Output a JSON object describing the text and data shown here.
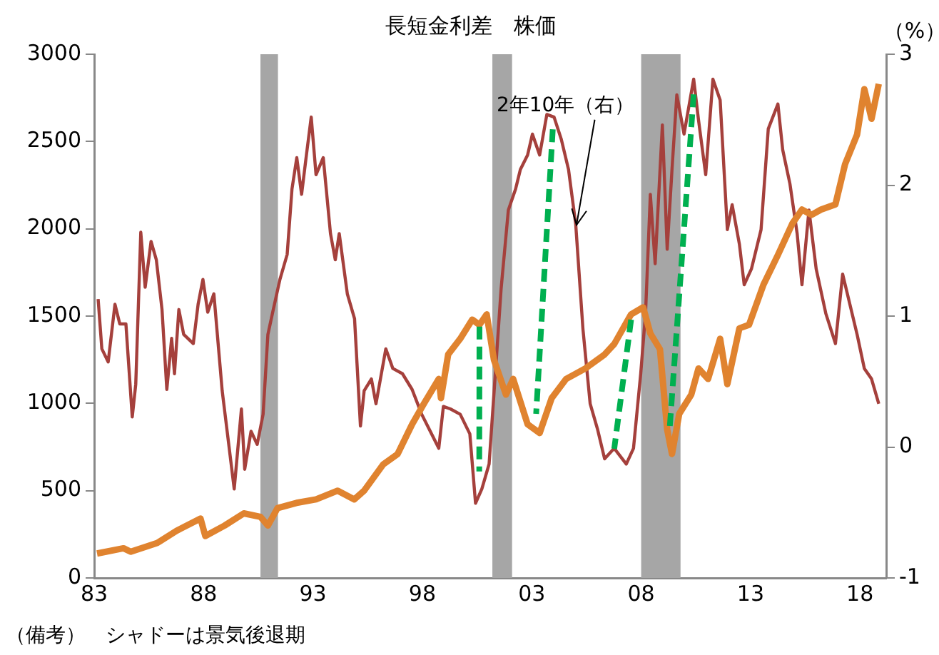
{
  "chart_data": {
    "type": "line",
    "title": "長短金利差　株価",
    "y2label": "（%）",
    "annotations": [
      "（備考）　シャドーは景気後退期"
    ],
    "xlim": [
      1983,
      2019.2
    ],
    "xticks": [
      {
        "value": 1983,
        "label": "83"
      },
      {
        "value": 1988,
        "label": "88"
      },
      {
        "value": 1993,
        "label": "93"
      },
      {
        "value": 1998,
        "label": "98"
      },
      {
        "value": 2003,
        "label": "03"
      },
      {
        "value": 2008,
        "label": "08"
      },
      {
        "value": 2013,
        "label": "13"
      },
      {
        "value": 2018,
        "label": "18"
      }
    ],
    "ylim": [
      0,
      3000
    ],
    "yticks": [
      0,
      500,
      1000,
      1500,
      2000,
      2500,
      3000
    ],
    "y2lim": [
      -1,
      3
    ],
    "y2ticks": [
      -1,
      0,
      1,
      2,
      3
    ],
    "grid": false,
    "legend": false,
    "marker": "none",
    "bands": [
      {
        "axis": "x",
        "from": 1990.6,
        "to": 1991.4,
        "color": "#a6a6a6"
      },
      {
        "axis": "x",
        "from": 2001.2,
        "to": 2002.1,
        "color": "#a6a6a6"
      },
      {
        "axis": "x",
        "from": 2008.0,
        "to": 2009.8,
        "color": "#a6a6a6"
      }
    ],
    "series": [
      {
        "color": "#e0832f",
        "line_style": "solid",
        "x": [
          1983.13,
          1984.34,
          1984.67,
          1985.88,
          1986.76,
          1987.86,
          1988.08,
          1988.96,
          1989.84,
          1990.6,
          1990.94,
          1991.38,
          1992.25,
          1993.14,
          1994.13,
          1994.89,
          1995.34,
          1996.21,
          1996.87,
          1997.53,
          1998.08,
          1998.75,
          1998.85,
          1999.18,
          1999.73,
          2000.28,
          2000.61,
          2000.94,
          2001.27,
          2001.82,
          2002.15,
          2002.81,
          2003.36,
          2003.91,
          2004.57,
          2005.45,
          2006.33,
          2006.77,
          2007.54,
          2008.09,
          2008.42,
          2008.86,
          2009.19,
          2009.41,
          2009.74,
          2010.29,
          2010.62,
          2011.06,
          2011.61,
          2011.94,
          2012.49,
          2012.93,
          2013.59,
          2014.25,
          2014.91,
          2015.35,
          2015.79,
          2016.22,
          2016.88,
          2017.32,
          2017.87,
          2018.2,
          2018.53,
          2018.86
        ],
        "values": [
          140,
          170,
          150,
          200,
          270,
          340,
          240,
          300,
          370,
          350,
          300,
          400,
          430,
          450,
          500,
          450,
          500,
          650,
          710,
          880,
          1000,
          1140,
          1030,
          1280,
          1370,
          1480,
          1450,
          1510,
          1250,
          1050,
          1140,
          880,
          830,
          1030,
          1140,
          1200,
          1280,
          1340,
          1510,
          1550,
          1400,
          1310,
          850,
          710,
          940,
          1050,
          1200,
          1140,
          1370,
          1110,
          1430,
          1450,
          1680,
          1850,
          2030,
          2110,
          2080,
          2110,
          2140,
          2370,
          2540,
          2800,
          2630,
          2830
        ]
      },
      {
        "name": "2年10年（右）",
        "color": "#a5403c",
        "axis": "y2",
        "line_style": "solid",
        "x": [
          1983.18,
          1983.35,
          1983.64,
          1983.95,
          1984.17,
          1984.45,
          1984.74,
          1984.9,
          1985.13,
          1985.33,
          1985.6,
          1985.84,
          1986.1,
          1986.32,
          1986.54,
          1986.67,
          1986.87,
          1987.09,
          1987.53,
          1987.75,
          1987.97,
          1988.19,
          1988.47,
          1988.85,
          1989.4,
          1989.73,
          1989.88,
          1990.17,
          1990.45,
          1990.72,
          1990.94,
          1991.16,
          1991.49,
          1991.82,
          1992.04,
          1992.26,
          1992.48,
          1992.7,
          1992.92,
          1993.14,
          1993.47,
          1993.8,
          1994.02,
          1994.2,
          1994.57,
          1994.9,
          1995.17,
          1995.34,
          1995.67,
          1995.88,
          1996.33,
          1996.65,
          1997.09,
          1997.53,
          1997.97,
          1998.3,
          1998.75,
          1998.96,
          1999.29,
          1999.73,
          2000.17,
          2000.43,
          2000.72,
          2001.05,
          2001.38,
          2001.6,
          2001.93,
          2002.26,
          2002.48,
          2002.81,
          2003.03,
          2003.36,
          2003.69,
          2004.02,
          2004.35,
          2004.68,
          2005.01,
          2005.34,
          2005.67,
          2006.0,
          2006.33,
          2006.77,
          2007.32,
          2007.65,
          2007.98,
          2008.2,
          2008.42,
          2008.64,
          2008.97,
          2009.19,
          2009.41,
          2009.63,
          2009.96,
          2010.4,
          2010.62,
          2010.95,
          2011.28,
          2011.61,
          2011.94,
          2012.16,
          2012.49,
          2012.71,
          2013.04,
          2013.48,
          2013.81,
          2014.25,
          2014.47,
          2014.8,
          2015.13,
          2015.35,
          2015.67,
          2016.0,
          2016.44,
          2016.88,
          2017.21,
          2017.54,
          2017.87,
          2018.2,
          2018.53,
          2018.86
        ],
        "values": [
          1.13,
          0.75,
          0.65,
          1.09,
          0.94,
          0.94,
          0.23,
          0.48,
          1.64,
          1.22,
          1.57,
          1.43,
          1.05,
          0.44,
          0.83,
          0.56,
          1.05,
          0.86,
          0.79,
          1.09,
          1.28,
          1.03,
          1.17,
          0.43,
          -0.32,
          0.29,
          -0.17,
          0.12,
          0.02,
          0.25,
          0.86,
          1.03,
          1.28,
          1.47,
          1.97,
          2.21,
          1.93,
          2.23,
          2.52,
          2.08,
          2.21,
          1.63,
          1.43,
          1.63,
          1.17,
          0.98,
          0.16,
          0.43,
          0.52,
          0.33,
          0.75,
          0.6,
          0.56,
          0.44,
          0.25,
          0.14,
          -0.01,
          0.31,
          0.29,
          0.25,
          0.1,
          -0.43,
          -0.32,
          -0.13,
          0.67,
          1.21,
          1.81,
          1.97,
          2.12,
          2.23,
          2.39,
          2.23,
          2.54,
          2.52,
          2.35,
          2.12,
          1.7,
          0.9,
          0.33,
          0.14,
          -0.09,
          -0.01,
          -0.13,
          -0.01,
          0.56,
          1.02,
          1.93,
          1.4,
          2.46,
          1.51,
          2.12,
          2.69,
          2.39,
          2.81,
          2.5,
          2.08,
          2.81,
          2.65,
          1.66,
          1.85,
          1.55,
          1.24,
          1.36,
          1.66,
          2.43,
          2.62,
          2.27,
          2.01,
          1.63,
          1.24,
          1.81,
          1.36,
          1.02,
          0.79,
          1.32,
          1.09,
          0.86,
          0.6,
          0.52,
          0.33
        ]
      },
      {
        "color": "#00b050",
        "line_style": "dashed",
        "x": [
          2000.61,
          2000.6
        ],
        "values": [
          1440,
          610
        ]
      },
      {
        "color": "#00b050",
        "line_style": "dashed",
        "x": [
          2003.96,
          2003.2
        ],
        "values": [
          2570,
          940
        ]
      },
      {
        "color": "#00b050",
        "line_style": "dashed",
        "x": [
          2007.54,
          2006.77
        ],
        "values": [
          1480,
          740
        ]
      },
      {
        "color": "#00b050",
        "line_style": "dashed",
        "x": [
          2010.4,
          2009.3
        ],
        "values": [
          2770,
          850
        ]
      }
    ]
  }
}
